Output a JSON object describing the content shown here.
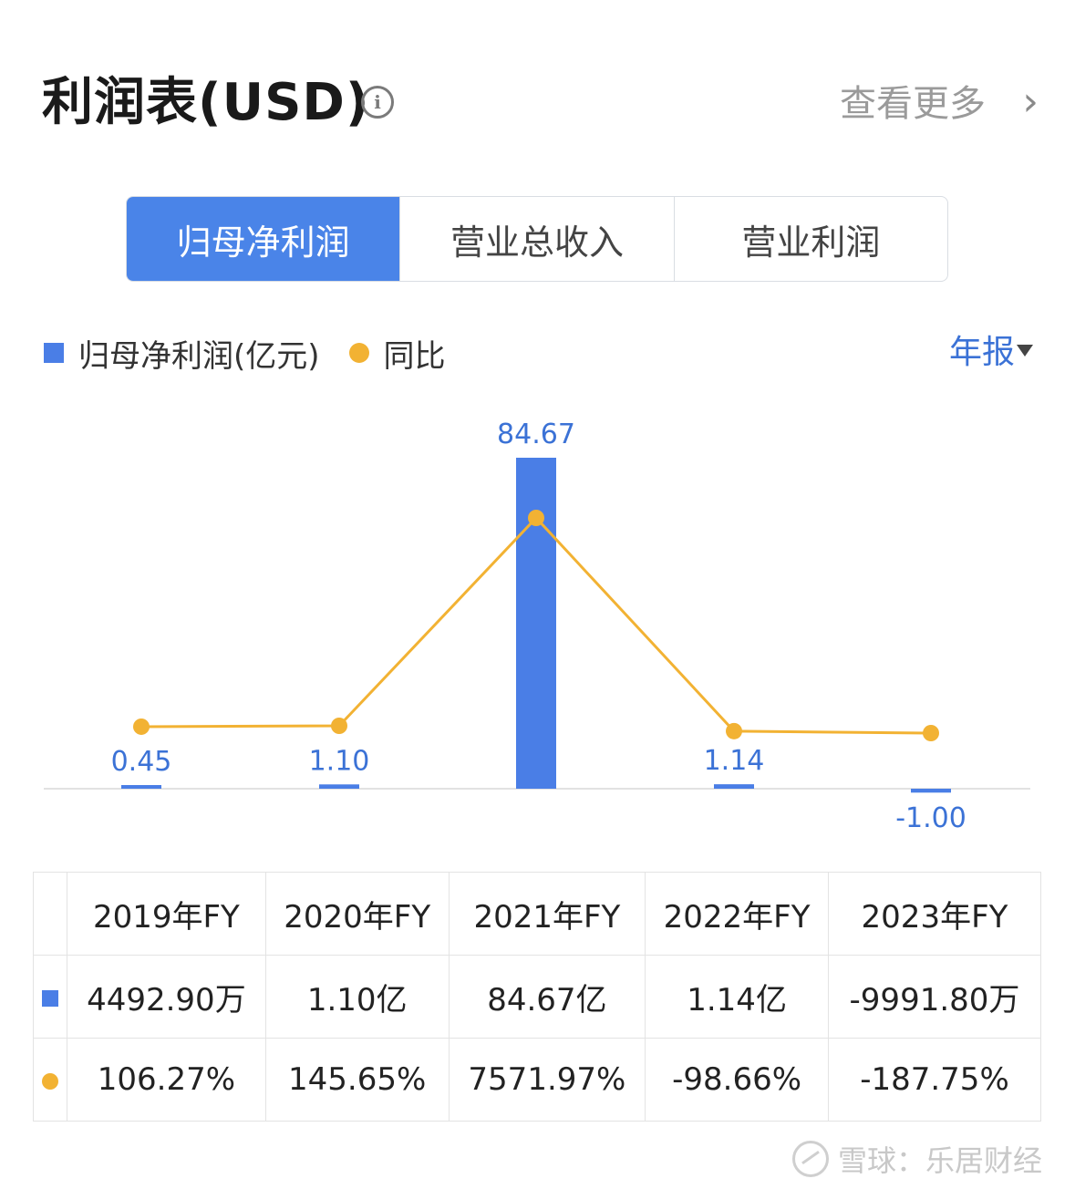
{
  "header": {
    "title": "利润表(USD)",
    "info_icon": "info-icon",
    "more_label": "查看更多",
    "more_icon": "chevron-right-icon"
  },
  "tabs": [
    {
      "label": "归母净利润",
      "active": true
    },
    {
      "label": "营业总收入",
      "active": false
    },
    {
      "label": "营业利润",
      "active": false
    }
  ],
  "legend": {
    "bar_label": "归母净利润(亿元)",
    "line_label": "同比",
    "period_label": "年报"
  },
  "chart_data": {
    "type": "bar",
    "categories": [
      "2019年FY",
      "2020年FY",
      "2021年FY",
      "2022年FY",
      "2023年FY"
    ],
    "series": [
      {
        "name": "归母净利润(亿元)",
        "type": "bar",
        "values": [
          0.45,
          1.1,
          84.67,
          1.14,
          -1.0
        ],
        "labels": [
          "0.45",
          "1.10",
          "84.67",
          "1.14",
          "-1.00"
        ]
      },
      {
        "name": "同比",
        "type": "line",
        "values": [
          106.27,
          145.65,
          7571.97,
          -98.66,
          -187.75
        ]
      }
    ],
    "bar_color": "#4a7ee6",
    "line_color": "#f2b233"
  },
  "table": {
    "headers": [
      "2019年FY",
      "2020年FY",
      "2021年FY",
      "2022年FY",
      "2023年FY"
    ],
    "row_values": [
      "4492.90万",
      "1.10亿",
      "84.67亿",
      "1.14亿",
      "-9991.80万"
    ],
    "row_yoy": [
      "106.27%",
      "145.65%",
      "7571.97%",
      "-98.66%",
      "-187.75%"
    ]
  },
  "watermark": "雪球：乐居财经"
}
